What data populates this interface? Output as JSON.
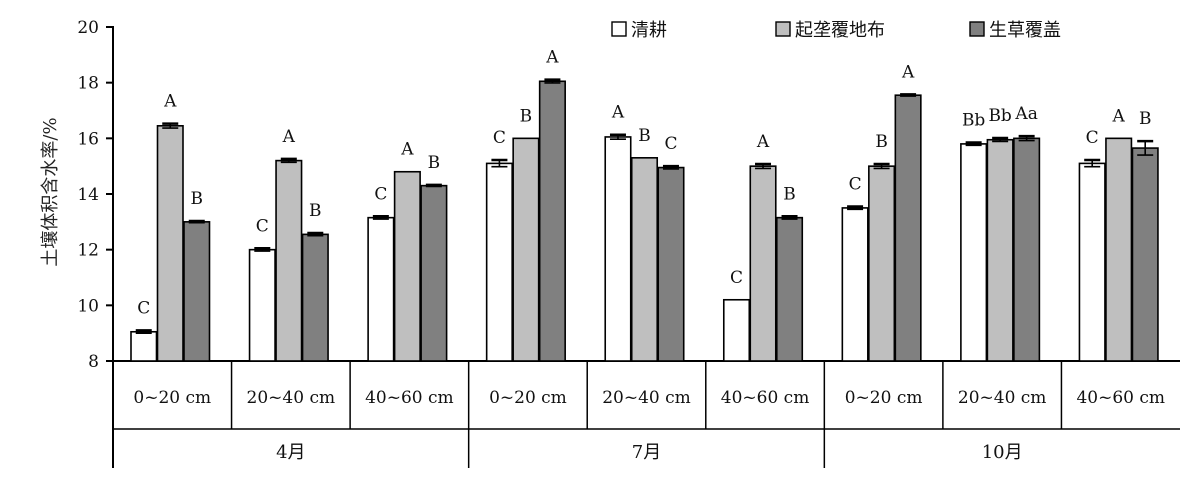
{
  "chart_data": {
    "type": "bar",
    "ylabel": "土壤体积含水率/%",
    "xlabel": "",
    "ylim": [
      8,
      20
    ],
    "yticks": [
      8,
      10,
      12,
      14,
      16,
      18,
      20
    ],
    "grid": false,
    "legend_position": "top",
    "groups": [
      {
        "label": "4月",
        "categories": [
          "0~20 cm",
          "20~40 cm",
          "40~60 cm"
        ]
      },
      {
        "label": "7月",
        "categories": [
          "0~20 cm",
          "20~40 cm",
          "40~60 cm"
        ]
      },
      {
        "label": "10月",
        "categories": [
          "0~20 cm",
          "20~40 cm",
          "40~60 cm"
        ]
      }
    ],
    "categories": [
      "0~20 cm",
      "20~40 cm",
      "40~60 cm",
      "0~20 cm",
      "20~40 cm",
      "40~60 cm",
      "0~20 cm",
      "20~40 cm",
      "40~60 cm"
    ],
    "series": [
      {
        "name": "清耕",
        "color": "#ffffff",
        "values": [
          9.05,
          12.0,
          13.15,
          15.1,
          16.05,
          10.2,
          13.5,
          15.8,
          15.1
        ],
        "errors": [
          0.05,
          0.05,
          0.05,
          0.12,
          0.08,
          0.0,
          0.05,
          0.05,
          0.12
        ],
        "labels": [
          "C",
          "C",
          "C",
          "C",
          "A",
          "C",
          "C",
          "Bb",
          "C"
        ]
      },
      {
        "name": "起垄覆地布",
        "color": "#bfbfbf",
        "values": [
          16.45,
          15.2,
          14.8,
          16.0,
          15.3,
          15.0,
          15.0,
          15.95,
          16.0
        ],
        "errors": [
          0.08,
          0.06,
          0.0,
          0.0,
          0.0,
          0.08,
          0.08,
          0.06,
          0.0
        ],
        "labels": [
          "A",
          "A",
          "A",
          "B",
          "B",
          "A",
          "B",
          "Bb",
          "A"
        ]
      },
      {
        "name": "生草覆盖",
        "color": "#808080",
        "values": [
          13.0,
          12.55,
          14.3,
          18.05,
          14.95,
          13.15,
          17.55,
          16.0,
          15.65
        ],
        "errors": [
          0.03,
          0.05,
          0.03,
          0.06,
          0.05,
          0.05,
          0.03,
          0.08,
          0.25
        ],
        "labels": [
          "B",
          "B",
          "B",
          "A",
          "C",
          "B",
          "A",
          "Aa",
          "B"
        ]
      }
    ]
  }
}
